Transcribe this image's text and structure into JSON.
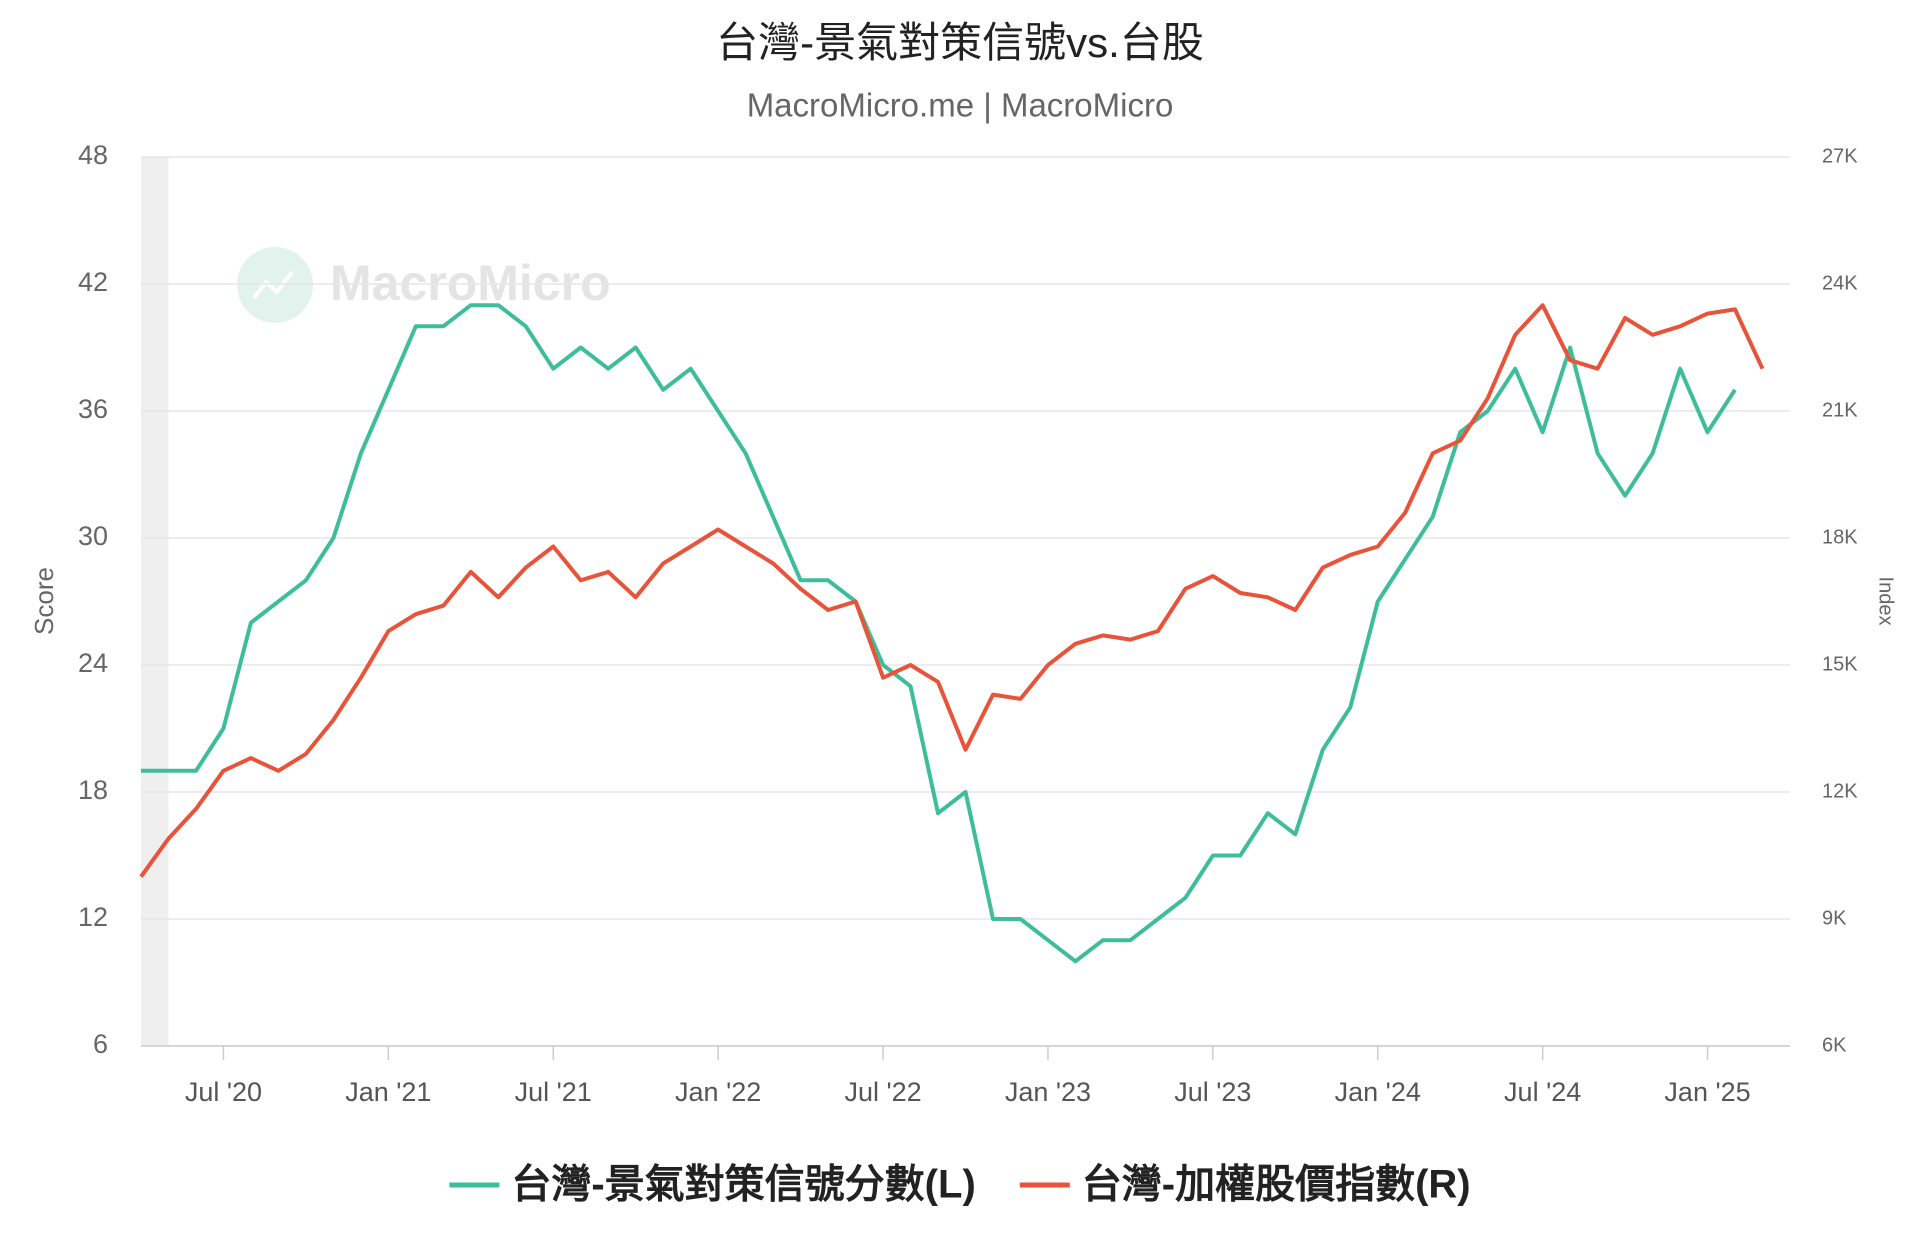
{
  "chart_data": {
    "type": "line",
    "title": "台灣-景氣對策信號vs.台股",
    "subtitle": "MacroMicro.me | MacroMicro",
    "watermark": "MacroMicro",
    "ylabel": "Score",
    "y2label": "Index",
    "x": [
      "2020-04",
      "2020-05",
      "2020-06",
      "2020-07",
      "2020-08",
      "2020-09",
      "2020-10",
      "2020-11",
      "2020-12",
      "2021-01",
      "2021-02",
      "2021-03",
      "2021-04",
      "2021-05",
      "2021-06",
      "2021-07",
      "2021-08",
      "2021-09",
      "2021-10",
      "2021-11",
      "2021-12",
      "2022-01",
      "2022-02",
      "2022-03",
      "2022-04",
      "2022-05",
      "2022-06",
      "2022-07",
      "2022-08",
      "2022-09",
      "2022-10",
      "2022-11",
      "2022-12",
      "2023-01",
      "2023-02",
      "2023-03",
      "2023-04",
      "2023-05",
      "2023-06",
      "2023-07",
      "2023-08",
      "2023-09",
      "2023-10",
      "2023-11",
      "2023-12",
      "2024-01",
      "2024-02",
      "2024-03",
      "2024-04",
      "2024-05",
      "2024-06",
      "2024-07",
      "2024-08",
      "2024-09",
      "2024-10",
      "2024-11",
      "2024-12",
      "2025-01",
      "2025-02",
      "2025-03"
    ],
    "series": [
      {
        "name": "台灣-景氣對策信號分數(L)",
        "color": "#3dbd9a",
        "axis": "y",
        "values": [
          19,
          19,
          19,
          21,
          26,
          27,
          28,
          30,
          34,
          37,
          40,
          40,
          41,
          41,
          40,
          38,
          39,
          38,
          39,
          37,
          38,
          36,
          34,
          31,
          28,
          28,
          27,
          24,
          23,
          17,
          18,
          12,
          12,
          11,
          10,
          11,
          11,
          12,
          13,
          15,
          15,
          17,
          16,
          20,
          22,
          27,
          29,
          31,
          35,
          36,
          38,
          35,
          39,
          34,
          32,
          34,
          38,
          35,
          37,
          null
        ]
      },
      {
        "name": "台灣-加權股價指數(R)",
        "color": "#e8533a",
        "axis": "y2",
        "values": [
          10000,
          10900,
          11600,
          12500,
          12800,
          12500,
          12900,
          13700,
          14700,
          15800,
          16200,
          16400,
          17200,
          16600,
          17300,
          17800,
          17000,
          17200,
          16600,
          17400,
          17800,
          18200,
          17800,
          17400,
          16800,
          16300,
          16500,
          14700,
          15000,
          14600,
          13000,
          14300,
          14200,
          15000,
          15500,
          15700,
          15600,
          15800,
          16800,
          17100,
          16700,
          16600,
          16300,
          17300,
          17600,
          17800,
          18600,
          20000,
          20300,
          21300,
          22800,
          23500,
          22200,
          22000,
          23200,
          22800,
          23000,
          23300,
          23400,
          22000
        ]
      }
    ],
    "bands": [
      [
        "2020-04",
        "2020-05"
      ]
    ],
    "xlim": [
      "2020-04",
      "2025-04"
    ],
    "xticks": [
      {
        "value": "2020-07",
        "label": "Jul '20"
      },
      {
        "value": "2021-01",
        "label": "Jan '21"
      },
      {
        "value": "2021-07",
        "label": "Jul '21"
      },
      {
        "value": "2022-01",
        "label": "Jan '22"
      },
      {
        "value": "2022-07",
        "label": "Jul '22"
      },
      {
        "value": "2023-01",
        "label": "Jan '23"
      },
      {
        "value": "2023-07",
        "label": "Jul '23"
      },
      {
        "value": "2024-01",
        "label": "Jan '24"
      },
      {
        "value": "2024-07",
        "label": "Jul '24"
      },
      {
        "value": "2025-01",
        "label": "Jan '25"
      }
    ],
    "ylim": [
      6,
      48
    ],
    "yticks": [
      6,
      12,
      18,
      24,
      30,
      36,
      42,
      48
    ],
    "y2lim": [
      6000,
      27000
    ],
    "y2ticks": [
      {
        "value": 6000,
        "label": "6K"
      },
      {
        "value": 9000,
        "label": "9K"
      },
      {
        "value": 12000,
        "label": "12K"
      },
      {
        "value": 15000,
        "label": "15K"
      },
      {
        "value": 18000,
        "label": "18K"
      },
      {
        "value": 21000,
        "label": "21K"
      },
      {
        "value": 24000,
        "label": "24K"
      },
      {
        "value": 27000,
        "label": "27K"
      }
    ],
    "grid": true,
    "legend": "bottom"
  }
}
